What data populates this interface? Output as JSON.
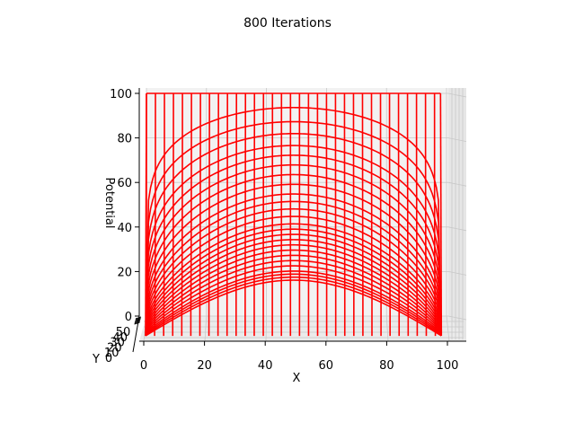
{
  "chart_data": {
    "type": "line",
    "projection": "3d-wireframe",
    "title": "800 Iterations",
    "xlabel": "X",
    "ylabel": "Y",
    "zlabel": "Potential",
    "xlim": [
      0,
      105
    ],
    "zlim": [
      0,
      100
    ],
    "x_ticks": [
      0,
      20,
      40,
      60,
      80,
      100
    ],
    "y_ticks": [
      0,
      10,
      20,
      30,
      40,
      50
    ],
    "z_ticks": [
      0,
      20,
      40,
      60,
      80,
      100
    ],
    "series_color": "#ff0000",
    "grid": true,
    "grid_color": "#c8c8c8",
    "pane_color": "#f2f2f2",
    "wire_step": 3,
    "boundary_value": 100,
    "x_extent": [
      0,
      98
    ],
    "row_peaks": [
      100,
      94,
      88,
      83,
      78,
      74,
      70,
      66,
      62,
      58,
      55,
      52,
      49,
      46,
      44,
      42,
      40,
      38,
      36,
      34,
      32,
      30,
      28,
      27,
      26,
      25
    ]
  }
}
